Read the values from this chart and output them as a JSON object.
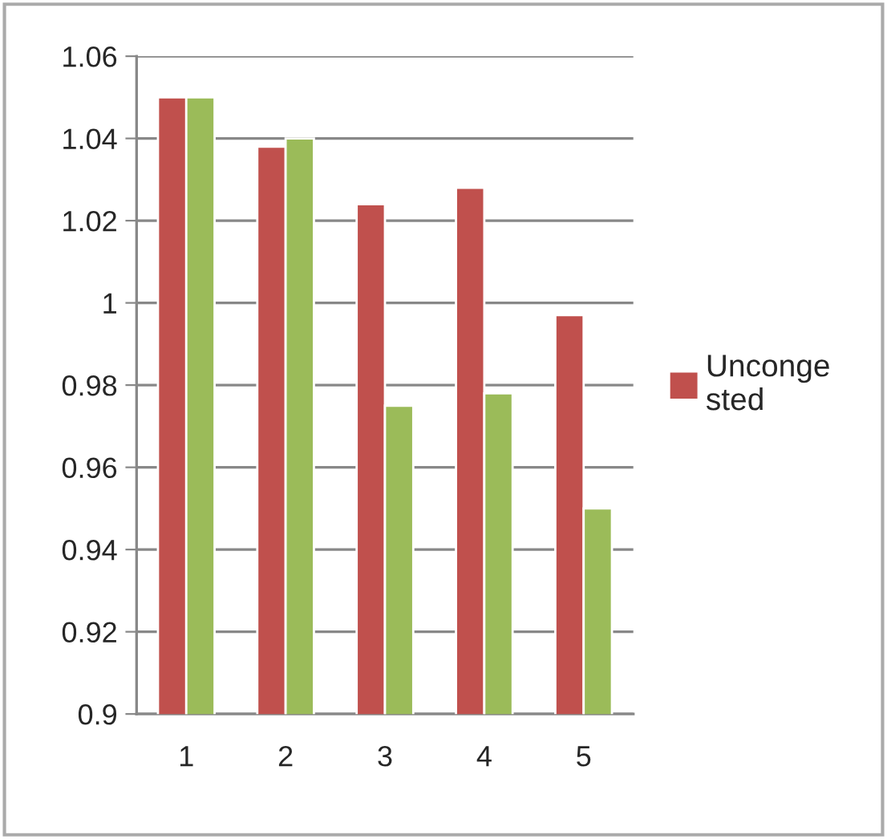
{
  "chart_data": {
    "type": "bar",
    "categories": [
      "1",
      "2",
      "3",
      "4",
      "5"
    ],
    "series": [
      {
        "name": "Unconge\nsted",
        "color": "#c0504d",
        "values": [
          1.05,
          1.038,
          1.024,
          1.028,
          0.997
        ]
      },
      {
        "color": "#9bbb59",
        "values": [
          1.05,
          1.04,
          0.975,
          0.978,
          0.95
        ]
      }
    ],
    "ylim": [
      0.9,
      1.06
    ],
    "yticks": [
      0.9,
      0.92,
      0.94,
      0.96,
      0.98,
      1,
      1.02,
      1.04,
      1.06
    ],
    "grid": "y",
    "legend": "right"
  }
}
